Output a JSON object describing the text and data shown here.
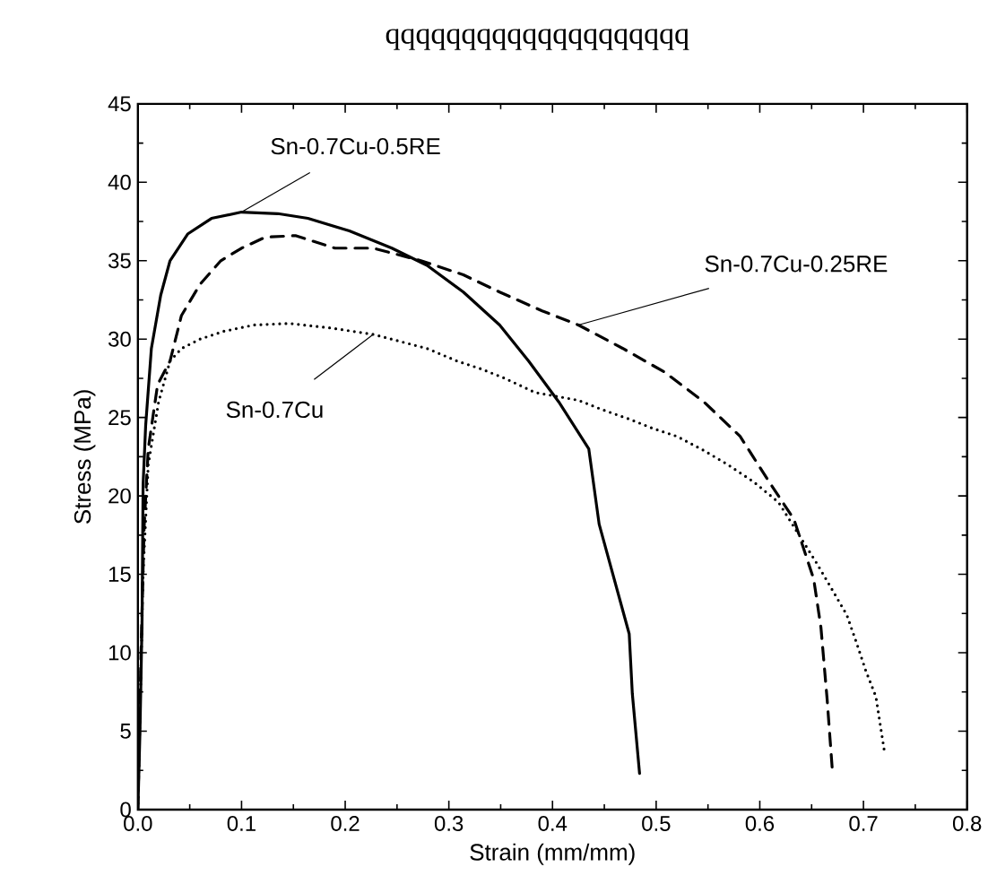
{
  "chart_data": {
    "type": "line",
    "title": "qqqqqqqqqqqqqqqqqqqq",
    "xlabel": "Strain (mm/mm)",
    "ylabel": "Stress (MPa)",
    "xlim": [
      0,
      0.8
    ],
    "ylim": [
      0,
      45
    ],
    "xticks": [
      {
        "value": 0,
        "label": "0.0"
      },
      {
        "value": 0.1,
        "label": "0.1"
      },
      {
        "value": 0.2,
        "label": "0.2"
      },
      {
        "value": 0.3,
        "label": "0.3"
      },
      {
        "value": 0.4,
        "label": "0.4"
      },
      {
        "value": 0.5,
        "label": "0.5"
      },
      {
        "value": 0.6,
        "label": "0.6"
      },
      {
        "value": 0.7,
        "label": "0.7"
      },
      {
        "value": 0.8,
        "label": "0.8"
      }
    ],
    "yticks": [
      0,
      5,
      10,
      15,
      20,
      25,
      30,
      35,
      40,
      45
    ],
    "grid": false,
    "marker": "none",
    "annotations": [
      {
        "text": "Sn-0.7Cu-0.5RE",
        "x": 0.1,
        "y": 38.1
      },
      {
        "text": "Sn-0.7Cu-0.25RE",
        "x": 0.425,
        "y": 30.9
      },
      {
        "text": "Sn-0.7Cu",
        "x": 0.227,
        "y": 30.3
      }
    ],
    "series": [
      {
        "color": "#000000",
        "line_style": "solid",
        "x": [
          0,
          0.002,
          0.004,
          0.005,
          0.0075,
          0.013,
          0.022,
          0.031,
          0.048,
          0.071,
          0.1,
          0.135,
          0.164,
          0.204,
          0.245,
          0.279,
          0.314,
          0.349,
          0.377,
          0.406,
          0.435,
          0.445,
          0.474,
          0.477,
          0.484
        ],
        "values": [
          0,
          5,
          12,
          20.7,
          24.5,
          29.4,
          32.8,
          35,
          36.7,
          37.7,
          38.1,
          38,
          37.7,
          36.9,
          35.8,
          34.7,
          33,
          30.9,
          28.6,
          26,
          23,
          18.2,
          11.2,
          7.4,
          2.3
        ]
      },
      {
        "color": "#000000",
        "line_style": "dashed",
        "x": [
          0,
          0.003,
          0.006,
          0.01,
          0.019,
          0.031,
          0.042,
          0.06,
          0.08,
          0.1,
          0.123,
          0.152,
          0.19,
          0.227,
          0.273,
          0.314,
          0.349,
          0.39,
          0.425,
          0.468,
          0.508,
          0.546,
          0.581,
          0.607,
          0.633,
          0.652,
          0.659,
          0.665,
          0.67
        ],
        "values": [
          0,
          10,
          18,
          23,
          27.1,
          28.6,
          31.5,
          33.5,
          35,
          35.8,
          36.5,
          36.6,
          35.8,
          35.8,
          35,
          34.1,
          33,
          31.8,
          30.9,
          29.4,
          27.9,
          26,
          23.8,
          21.1,
          18.5,
          14.7,
          11.6,
          7,
          2.5
        ]
      },
      {
        "color": "#000000",
        "line_style": "dotted",
        "x": [
          0,
          0.005,
          0.01,
          0.02,
          0.031,
          0.042,
          0.06,
          0.083,
          0.112,
          0.146,
          0.187,
          0.227,
          0.256,
          0.279,
          0.308,
          0.331,
          0.354,
          0.383,
          0.425,
          0.448,
          0.474,
          0.497,
          0.52,
          0.546,
          0.569,
          0.594,
          0.618,
          0.655,
          0.67,
          0.684,
          0.694,
          0.702,
          0.712,
          0.716,
          0.72
        ],
        "values": [
          0,
          15,
          22,
          26,
          28.6,
          29.4,
          30,
          30.5,
          30.9,
          31,
          30.7,
          30.3,
          29.8,
          29.4,
          28.6,
          28.1,
          27.5,
          26.6,
          26.1,
          25.5,
          24.9,
          24.3,
          23.8,
          22.9,
          22,
          20.9,
          19.6,
          15.7,
          14,
          12.4,
          10.5,
          8.9,
          7.2,
          5.5,
          3.8
        ]
      }
    ]
  }
}
